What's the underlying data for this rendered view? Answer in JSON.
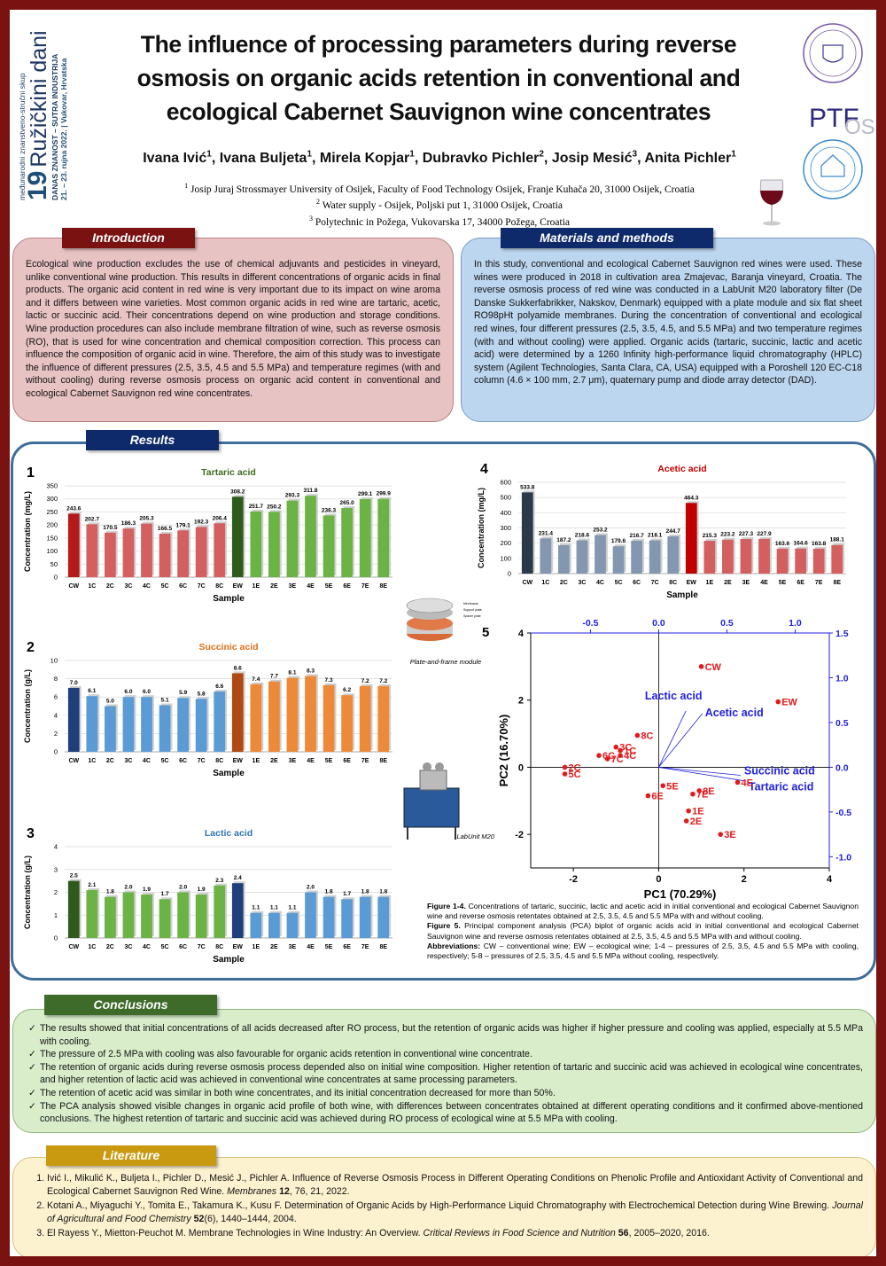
{
  "logo": {
    "event_type": "međunarodni znanstveno-stručni skup",
    "number": "19",
    "name": "Ružičkini dani",
    "motto": "DANAS ZNANOST – SUTRA INDUSTRIJA",
    "date_place": "21. – 23. rujna 2022. | Vukovar, Hrvatska"
  },
  "header": {
    "title": "The influence of processing parameters during reverse osmosis on organic acids retention in conventional and ecological Cabernet Sauvignon wine concentrates",
    "authors": [
      {
        "name": "Ivana Ivić",
        "affiliation": "1",
        "separator": ","
      },
      {
        "name": "Ivana Buljeta",
        "affiliation": "1",
        "separator": ","
      },
      {
        "name": "Mirela Kopjar",
        "affiliation": "1",
        "separator": ","
      },
      {
        "name": "Dubravko Pichler",
        "affiliation": "2",
        "separator": ","
      },
      {
        "name": "Josip Mesić",
        "affiliation": "3",
        "separator": ","
      },
      {
        "name": "Anita Pichler",
        "affiliation": "1"
      }
    ],
    "affiliations": [
      {
        "number": "1",
        "text": "Josip Juraj Strossmayer University of Osijek, Faculty of Food Technology Osijek, Franje Kuhača 20, 31000 Osijek, Croatia"
      },
      {
        "number": "2",
        "text": "Water supply - Osijek, Poljski put 1, 31000 Osijek, Croatia"
      },
      {
        "number": "3",
        "text": "Polytechnic in Požega, Vukovarska 17, 34000 Požega, Croatia"
      }
    ]
  },
  "partner_logos": {
    "ptf": "PTF",
    "os": "OS"
  },
  "introduction": {
    "heading": "Introduction",
    "text": "Ecological wine production excludes the use of chemical adjuvants and pesticides in vineyard, unlike conventional wine production. This results in different concentrations of organic acids in final products. The organic acid content in red wine is very important due to its impact on wine aroma and it differs between wine varieties. Most common organic acids in red wine are tartaric, acetic, lactic or succinic acid. Their concentrations depend on wine production and storage conditions. Wine production procedures can also include membrane filtration of wine, such as reverse osmosis (RO), that is used for wine concentration and chemical composition correction. This process can influence the composition of organic acid in wine. Therefore, the aim of this study was to investigate the influence of different pressures (2.5, 3.5, 4.5 and 5.5 MPa) and temperature regimes (with and without cooling) during reverse osmosis process on organic acid content in conventional and ecological Cabernet Sauvignon red wine concentrates."
  },
  "methods": {
    "heading": "Materials and methods",
    "text": "In this study, conventional and ecological Cabernet Sauvignon red wines were used. These wines were produced in 2018 in cultivation area Zmajevac, Baranja vineyard, Croatia. The reverse osmosis process of red wine was conducted in a LabUnit M20 laboratory filter (De Danske Sukkerfabrikker, Nakskov, Denmark) equipped with a plate module and six flat sheet RO98pHt polyamide membranes. During the concentration of conventional and ecological red wines, four different pressures (2.5, 3.5, 4.5, and 5.5 MPa) and two temperature regimes (with and without cooling) were applied. Organic acids (tartaric, succinic, lactic and acetic acid) were determined by a 1260 Infinity high-performance liquid chromatography (HPLC) system (Agilent Technologies, Santa Clara, CA, USA) equipped with a Poroshell 120 EC-C18 column (4.6 × 100 mm, 2.7 μm), quaternary pump and diode array detector (DAD)."
  },
  "results": {
    "heading": "Results",
    "images": [
      {
        "caption": "Plate-and-frame module",
        "labels": [
          "Membrane",
          "Support plate",
          "Spacer plate"
        ]
      },
      {
        "caption": "LabUnit M20"
      }
    ],
    "captions": [
      {
        "label": "Figure 1-4.",
        "text": "Concentrations of tartaric, succinic, lactic and acetic acid in initial conventional and ecological Cabernet Sauvignon wine and reverse osmosis retentates obtained at 2.5, 3.5, 4.5 and 5.5 MPa with and without cooling."
      },
      {
        "label": "Figure 5.",
        "text": "Principal component analysis (PCA) biplot of organic acids acid in initial conventional and ecological Cabernet Sauvignon wine and reverse osmosis retentates obtained at 2.5, 3.5, 4.5 and 5.5 MPa with and without cooling."
      },
      {
        "label": "Abbreviations:",
        "text": "CW – conventional wine; EW – ecological wine; 1-4 – pressures of 2.5, 3.5, 4.5 and 5.5 MPa with cooling, respectively; 5-8 – pressures of 2.5, 3.5, 4.5 and 5.5 MPa without cooling, respectively."
      }
    ]
  },
  "chart_data": [
    {
      "type": "bar",
      "number": "1",
      "title": "Tartaric acid",
      "title_color": "#3d6b1f",
      "xlabel": "Sample",
      "ylabel": "Concentration (mg/L)",
      "categories": [
        "CW",
        "1C",
        "2C",
        "3C",
        "4C",
        "5C",
        "6C",
        "7C",
        "8C",
        "EW",
        "1E",
        "2E",
        "3E",
        "4E",
        "5E",
        "6E",
        "7E",
        "8E"
      ],
      "values": [
        243.6,
        202.7,
        170.5,
        186.3,
        205.3,
        166.5,
        179.1,
        192.3,
        206.4,
        308.2,
        251.7,
        250.2,
        293.3,
        311.8,
        236.3,
        265.0,
        299.1,
        299.9
      ],
      "value_labels": [
        "243.6",
        "202.7",
        "170.5",
        "186.3",
        "205.3",
        "166.5",
        "179.1",
        "192.3",
        "206.4",
        "308.2",
        "251.7",
        "250.2",
        "293.3",
        "311.8",
        "236.3",
        "265.0",
        "299.1",
        "299.9"
      ],
      "colors": [
        "#b51a1a",
        "#d45f5f",
        "#d45f5f",
        "#d45f5f",
        "#d45f5f",
        "#d45f5f",
        "#d45f5f",
        "#d45f5f",
        "#d45f5f",
        "#2e5a1c",
        "#6bb344",
        "#6bb344",
        "#6bb344",
        "#6bb344",
        "#6bb344",
        "#6bb344",
        "#6bb344",
        "#6bb344"
      ],
      "ylim": [
        0,
        350
      ],
      "yticks": [
        0,
        50,
        100,
        150,
        200,
        250,
        300,
        350
      ],
      "grid": true
    },
    {
      "type": "bar",
      "number": "2",
      "title": "Succinic acid",
      "title_color": "#e0701a",
      "xlabel": "Sample",
      "ylabel": "Concentration (g/L)",
      "categories": [
        "CW",
        "1C",
        "2C",
        "3C",
        "4C",
        "5C",
        "6C",
        "7C",
        "8C",
        "EW",
        "1E",
        "2E",
        "3E",
        "4E",
        "5E",
        "6E",
        "7E",
        "8E"
      ],
      "values": [
        7.0,
        6.1,
        5.0,
        6.0,
        6.0,
        5.1,
        5.9,
        5.8,
        6.6,
        8.6,
        7.4,
        7.7,
        8.1,
        8.3,
        7.3,
        6.2,
        7.2,
        7.2
      ],
      "value_labels": [
        "7.0",
        "6.1",
        "5.0",
        "6.0",
        "6.0",
        "5.1",
        "5.9",
        "5.8",
        "6.6",
        "8.6",
        "7.4",
        "7.7",
        "8.1",
        "8.3",
        "7.3",
        "6.2",
        "7.2",
        "7.2"
      ],
      "colors": [
        "#1f3f7a",
        "#5b9bd5",
        "#5b9bd5",
        "#5b9bd5",
        "#5b9bd5",
        "#5b9bd5",
        "#5b9bd5",
        "#5b9bd5",
        "#5b9bd5",
        "#b04a12",
        "#ed8a3a",
        "#ed8a3a",
        "#ed8a3a",
        "#ed8a3a",
        "#ed8a3a",
        "#ed8a3a",
        "#ed8a3a",
        "#ed8a3a"
      ],
      "ylim": [
        0,
        10
      ],
      "yticks": [
        0,
        2,
        4,
        6,
        8,
        10
      ],
      "grid": true
    },
    {
      "type": "bar",
      "number": "3",
      "title": "Lactic acid",
      "title_color": "#2f75b5",
      "xlabel": "Sample",
      "ylabel": "Concentration (g/L)",
      "categories": [
        "CW",
        "1C",
        "2C",
        "3C",
        "4C",
        "5C",
        "6C",
        "7C",
        "8C",
        "EW",
        "1E",
        "2E",
        "3E",
        "4E",
        "5E",
        "6E",
        "7E",
        "8E"
      ],
      "values": [
        2.5,
        2.1,
        1.8,
        2.0,
        1.9,
        1.7,
        2.0,
        1.9,
        2.3,
        2.4,
        1.1,
        1.1,
        1.1,
        2.0,
        1.8,
        1.7,
        1.8,
        1.8
      ],
      "value_labels": [
        "2.5",
        "2.1",
        "1.8",
        "2.0",
        "1.9",
        "1.7",
        "2.0",
        "1.9",
        "2.3",
        "2.4",
        "1.1",
        "1.1",
        "1.1",
        "2.0",
        "1.8",
        "1.7",
        "1.8",
        "1.8"
      ],
      "colors": [
        "#2e5a1c",
        "#6bb344",
        "#6bb344",
        "#6bb344",
        "#6bb344",
        "#6bb344",
        "#6bb344",
        "#6bb344",
        "#6bb344",
        "#1f3f7a",
        "#5b9bd5",
        "#5b9bd5",
        "#5b9bd5",
        "#5b9bd5",
        "#5b9bd5",
        "#5b9bd5",
        "#5b9bd5",
        "#5b9bd5"
      ],
      "ylim": [
        0,
        4
      ],
      "yticks": [
        0,
        1,
        2,
        3,
        4
      ],
      "grid": true
    },
    {
      "type": "bar",
      "number": "4",
      "title": "Acetic acid",
      "title_color": "#c00000",
      "xlabel": "Sample",
      "ylabel": "Concentration (mg/L)",
      "categories": [
        "CW",
        "1C",
        "2C",
        "3C",
        "4C",
        "5C",
        "6C",
        "7C",
        "8C",
        "EW",
        "1E",
        "2E",
        "3E",
        "4E",
        "5E",
        "6E",
        "7E",
        "8E"
      ],
      "values": [
        533.8,
        231.4,
        187.2,
        218.6,
        253.2,
        179.6,
        216.7,
        218.1,
        244.7,
        464.3,
        215.3,
        223.2,
        227.3,
        227.9,
        163.6,
        164.6,
        163.8,
        188.1
      ],
      "value_labels": [
        "533.8",
        "231.4",
        "187.2",
        "218.6",
        "253.2",
        "179.6",
        "216.7",
        "218.1",
        "244.7",
        "464.3",
        "215.3",
        "223.2",
        "227.3",
        "227.9",
        "163.6",
        "164.6",
        "163.8",
        "188.1"
      ],
      "colors": [
        "#2b3a4a",
        "#8497b0",
        "#8497b0",
        "#8497b0",
        "#8497b0",
        "#8497b0",
        "#8497b0",
        "#8497b0",
        "#8497b0",
        "#c00000",
        "#d45f5f",
        "#d45f5f",
        "#d45f5f",
        "#d45f5f",
        "#d45f5f",
        "#d45f5f",
        "#d45f5f",
        "#d45f5f"
      ],
      "ylim": [
        0,
        600
      ],
      "yticks": [
        0,
        100,
        200,
        300,
        400,
        500,
        600
      ],
      "grid": true
    },
    {
      "type": "scatter",
      "number": "5",
      "xlabel": "PC1 (70.29%)",
      "ylabel": "PC2 (16.70%)",
      "xlim": [
        -3,
        4
      ],
      "xticks": [
        -2,
        0,
        2,
        4
      ],
      "ylim": [
        -3,
        4
      ],
      "yticks": [
        -2,
        0,
        2,
        4
      ],
      "x2lim": [
        -0.9375,
        1.25
      ],
      "x2ticks": [
        -0.5,
        {
          "value": 0,
          "label": "0.0"
        },
        0.5,
        {
          "value": 1,
          "label": "1.0"
        }
      ],
      "y2lim": [
        -1.125,
        1.5
      ],
      "y2ticks": [
        {
          "value": -1,
          "label": "-1.0"
        },
        -0.5,
        {
          "value": 0,
          "label": "0.0"
        },
        0.5,
        {
          "value": 1,
          "label": "1.0"
        },
        1.5
      ],
      "points": {
        "color": "#e31a1c",
        "labels": [
          "CW",
          "EW",
          "8C",
          "3C",
          "1C",
          "4C",
          "6C",
          "7C",
          "2C",
          "5C",
          "5E",
          "6E",
          "8E",
          "7E",
          "4E",
          "1E",
          "2E",
          "3E"
        ],
        "x": [
          1.0,
          2.8,
          -0.5,
          -1.0,
          -0.9,
          -0.9,
          -1.4,
          -1.2,
          -2.2,
          -2.2,
          0.1,
          -0.25,
          0.95,
          0.8,
          1.85,
          0.7,
          0.65,
          1.45
        ],
        "y": [
          3.0,
          1.95,
          0.95,
          0.6,
          0.5,
          0.35,
          0.35,
          0.25,
          0.0,
          -0.2,
          -0.55,
          -0.85,
          -0.7,
          -0.8,
          -0.45,
          -1.3,
          -1.6,
          -2.0
        ]
      },
      "loadings": {
        "color": "#2222dd",
        "axis": "y2",
        "labels": [
          "Lactic acid",
          "Acetic acid",
          "Succinic acid",
          "Tartaric acid"
        ],
        "x": [
          0.2,
          0.32,
          0.6,
          0.62
        ],
        "y": [
          0.63,
          0.6,
          -0.09,
          -0.15
        ]
      }
    }
  ],
  "conclusions": {
    "heading": "Conclusions",
    "items": [
      "The results showed that initial concentrations of all acids decreased after RO process, but the retention of organic acids was higher if higher pressure and cooling was applied, especially at 5.5 MPa with cooling.",
      "The pressure of 2.5 MPa with cooling was also favourable for organic acids retention in conventional wine concentrate.",
      "The retention of organic acids during reverse osmosis process depended also on initial wine composition. Higher retention of tartaric and succinic acid was achieved in ecological wine concentrates, and higher retention of lactic acid was achieved in conventional wine concentrates at same processing parameters.",
      "The retention of acetic acid was similar in both wine concentrates, and its initial concentration decreased for more than 50%.",
      "The PCA analysis showed visible changes in organic acid profile of both wine, with differences between concentrates obtained at different operating conditions and it confirmed above-mentioned conclusions. The highest retention of tartaric and succinic acid was achieved during RO process of ecological wine at 5.5 MPa with cooling."
    ]
  },
  "literature": {
    "heading": "Literature",
    "items": [
      {
        "text": "Ivić I., Mikulić K., Buljeta I., Pichler D., Mesić J., Pichler A. Influence of Reverse Osmosis Process in Different Operating Conditions on Phenolic Profile and Antioxidant Activity of Conventional and Ecological Cabernet Sauvignon Red Wine. ",
        "journal": "Membranes",
        "volume": "12",
        "rest": ", 76, 21, 2022."
      },
      {
        "text": "Kotani A., Miyaguchi Y., Tomita E., Takamura K., Kusu F. Determination of Organic Acids by High-Performance Liquid Chromatography with Electrochemical Detection during Wine Brewing. ",
        "journal": "Journal of Agricultural and Food Chemistry",
        "volume": "52",
        "rest": "(6), 1440–1444, 2004."
      },
      {
        "text": "El Rayess Y., Mietton-Peuchot M. Membrane Technologies in Wine Industry: An Overview. ",
        "journal": "Critical Reviews in Food Science and Nutrition",
        "volume": "56",
        "rest": ", 2005–2020, 2016."
      }
    ]
  }
}
